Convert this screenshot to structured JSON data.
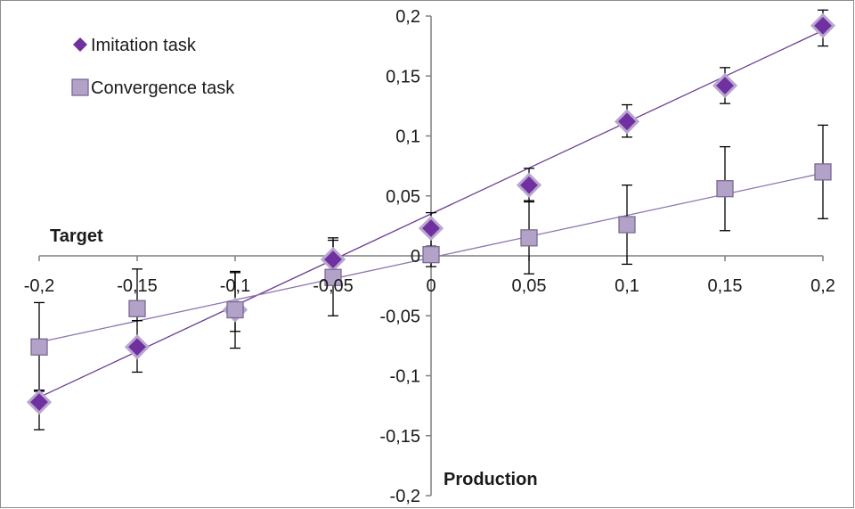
{
  "chart_data": {
    "type": "scatter",
    "title": "",
    "xlabel": "Target",
    "ylabel": "Production",
    "xlim": [
      -0.2,
      0.2
    ],
    "ylim": [
      -0.2,
      0.2
    ],
    "x_ticks": [
      -0.2,
      -0.15,
      -0.1,
      -0.05,
      0,
      0.05,
      0.1,
      0.15,
      0.2
    ],
    "y_ticks": [
      -0.2,
      -0.15,
      -0.1,
      -0.05,
      0,
      0.05,
      0.1,
      0.15,
      0.2
    ],
    "x_tick_labels": [
      "-0,2",
      "-0,15",
      "-0,1",
      "-0,05",
      "0",
      "0,05",
      "0,1",
      "0,15",
      "0,2"
    ],
    "y_tick_labels": [
      "-0,2",
      "-0,15",
      "-0,1",
      "-0,05",
      "0",
      "0,05",
      "0,1",
      "0,15",
      "0,2"
    ],
    "grid": false,
    "legend_position": "top-left",
    "series": [
      {
        "name": "Imitation task",
        "marker": "diamond",
        "color": "#7030A0",
        "x": [
          -0.2,
          -0.15,
          -0.1,
          -0.05,
          0,
          0.05,
          0.1,
          0.15,
          0.2
        ],
        "y": [
          -0.122,
          -0.076,
          -0.045,
          -0.003,
          0.023,
          0.059,
          0.112,
          0.142,
          0.192
        ],
        "error_low": [
          -0.145,
          -0.097,
          -0.077,
          -0.015,
          0.008,
          0.045,
          0.099,
          0.127,
          0.175
        ],
        "error_high": [
          -0.112,
          -0.054,
          -0.013,
          0.015,
          0.036,
          0.073,
          0.126,
          0.157,
          0.205
        ],
        "trendline": {
          "y_at_xmin": -0.118,
          "y_at_xmax": 0.188
        }
      },
      {
        "name": "Convergence task",
        "marker": "square",
        "color": "#B3A2C7",
        "x": [
          -0.2,
          -0.15,
          -0.1,
          -0.05,
          0,
          0.05,
          0.1,
          0.15,
          0.2
        ],
        "y": [
          -0.076,
          -0.044,
          -0.045,
          -0.018,
          0.001,
          0.015,
          0.026,
          0.056,
          0.07
        ],
        "error_low": [
          -0.113,
          -0.054,
          -0.063,
          -0.05,
          -0.009,
          -0.015,
          -0.007,
          0.021,
          0.031
        ],
        "error_high": [
          -0.039,
          -0.011,
          -0.014,
          0.013,
          0.008,
          0.046,
          0.059,
          0.091,
          0.109
        ],
        "trendline": {
          "y_at_xmin": -0.072,
          "y_at_xmax": 0.069
        }
      }
    ]
  }
}
